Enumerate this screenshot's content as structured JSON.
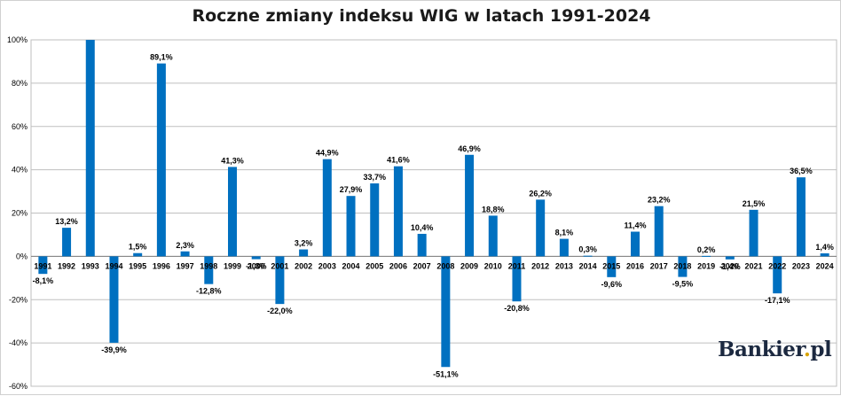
{
  "chart_data": {
    "type": "bar",
    "title": "Roczne zmiany indeksu WIG w latach 1991-2024",
    "xlabel": "",
    "ylabel": "",
    "ylim": [
      -60,
      100
    ],
    "yticks": [
      -60,
      -40,
      -20,
      0,
      20,
      40,
      60,
      80,
      100
    ],
    "ytick_labels": [
      "-60%",
      "-40%",
      "-20%",
      "0%",
      "20%",
      "40%",
      "60%",
      "80%",
      "100%"
    ],
    "grid": true,
    "legend": "none",
    "bar_color": "#0070c0",
    "categories": [
      "1991",
      "1992",
      "1993",
      "1994",
      "1995",
      "1996",
      "1997",
      "1998",
      "1999",
      "2000",
      "2001",
      "2002",
      "2003",
      "2004",
      "2005",
      "2006",
      "2007",
      "2008",
      "2009",
      "2010",
      "2011",
      "2012",
      "2013",
      "2014",
      "2015",
      "2016",
      "2017",
      "2018",
      "2019",
      "2020",
      "2021",
      "2022",
      "2023",
      "2024"
    ],
    "values": [
      -8.1,
      13.2,
      100,
      -39.9,
      1.5,
      89.1,
      2.3,
      -12.8,
      41.3,
      -1.3,
      -22.0,
      3.2,
      44.9,
      27.9,
      33.7,
      41.6,
      10.4,
      -51.1,
      46.9,
      18.8,
      -20.8,
      26.2,
      8.1,
      0.3,
      -9.6,
      11.4,
      23.2,
      -9.5,
      0.2,
      -1.4,
      21.5,
      -17.1,
      36.5,
      1.4
    ],
    "data_labels": [
      "-8,1%",
      "13,2%",
      "",
      "-39,9%",
      "1,5%",
      "89,1%",
      "2,3%",
      "-12,8%",
      "41,3%",
      "-1,3%",
      "-22,0%",
      "3,2%",
      "44,9%",
      "27,9%",
      "33,7%",
      "41,6%",
      "10,4%",
      "-51,1%",
      "46,9%",
      "18,8%",
      "-20,8%",
      "26,2%",
      "8,1%",
      "0,3%",
      "-9,6%",
      "11,4%",
      "23,2%",
      "-9,5%",
      "0,2%",
      "-1,4%",
      "21,5%",
      "-17,1%",
      "36,5%",
      "1,4%"
    ]
  },
  "logo": {
    "text_main": "Bankier",
    "text_dot": ".",
    "text_tld": "pl"
  }
}
